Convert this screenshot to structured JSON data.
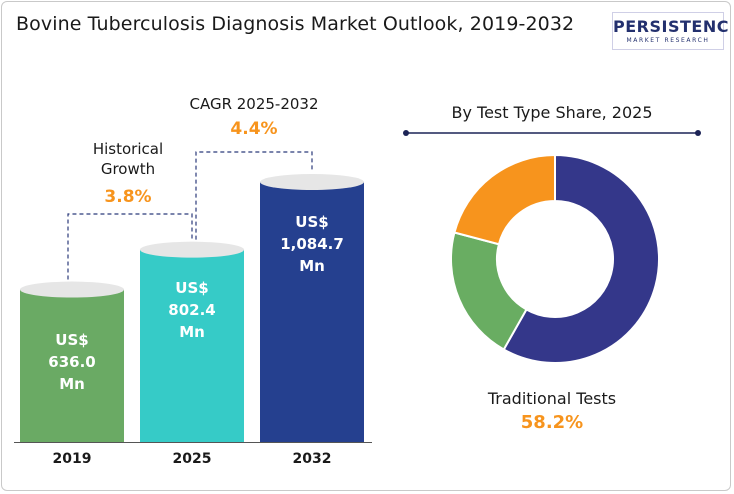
{
  "title": "Bovine Tuberculosis Diagnosis Market Outlook, 2019-2032",
  "logo": {
    "main": "PERSISTENCE",
    "sub": "MARKET RESEARCH"
  },
  "annotations": {
    "historical": {
      "label": "Historical Growth",
      "value": "3.8%"
    },
    "cagr": {
      "label": "CAGR 2025-2032",
      "value": "4.4%"
    }
  },
  "donut": {
    "title": "By Test Type Share, 2025",
    "highlight_label": "Traditional Tests",
    "highlight_value": "58.2%"
  },
  "colors": {
    "bar_2019": "#6aaa64",
    "bar_2025": "#36cbc7",
    "bar_2032": "#25408f",
    "accent": "#f7941d",
    "donut_blue": "#34378a",
    "donut_green": "#69ad62",
    "donut_orange": "#f7941d"
  },
  "chart_data": [
    {
      "type": "bar",
      "categories": [
        "2019",
        "2025",
        "2032"
      ],
      "values": [
        636.0,
        802.4,
        1084.7
      ],
      "value_labels": [
        "US$ 636.0 Mn",
        "US$ 802.4 Mn",
        "US$ 1,084.7 Mn"
      ],
      "unit": "US$ Mn",
      "title": "",
      "xlabel": "",
      "ylabel": "",
      "ylim": [
        0,
        1100
      ],
      "grid": false
    },
    {
      "type": "pie",
      "style": "donut",
      "title": "By Test Type Share, 2025",
      "slices": [
        {
          "name": "Traditional Tests",
          "value": 58.2,
          "color": "#34378a"
        },
        {
          "value": 20.9,
          "color": "#69ad62"
        },
        {
          "value": 20.9,
          "color": "#f7941d"
        }
      ]
    }
  ]
}
